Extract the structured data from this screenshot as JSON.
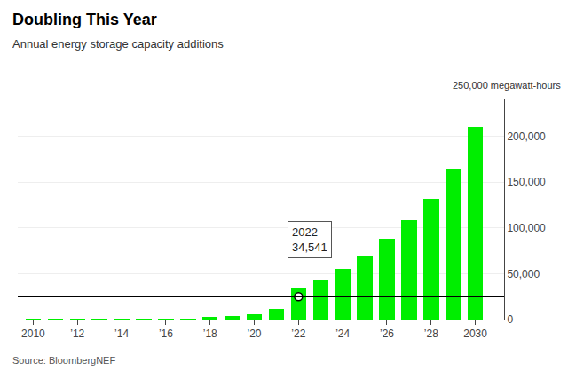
{
  "chart_data": {
    "type": "bar",
    "title": "Doubling This Year",
    "subtitle": "Annual energy storage capacity additions",
    "source": "Source: BloombergNEF",
    "unit_label": "250,000 megawatt-hours",
    "x": [
      2010,
      2011,
      2012,
      2013,
      2014,
      2015,
      2016,
      2017,
      2018,
      2019,
      2020,
      2021,
      2022,
      2023,
      2024,
      2025,
      2026,
      2027,
      2028,
      2029,
      2030
    ],
    "values": [
      150,
      200,
      250,
      300,
      350,
      450,
      600,
      900,
      2500,
      4000,
      5500,
      12000,
      34541,
      44000,
      55000,
      70000,
      88000,
      108000,
      132000,
      165000,
      210000
    ],
    "color": "#00ee00",
    "hline": 25000,
    "annotations": [
      {
        "x": 2022,
        "text": "2022\n34,541"
      }
    ],
    "xlim": [
      2009.3,
      2031.3
    ],
    "xticks": [
      2010,
      {
        "value": 2012,
        "label": "’12"
      },
      {
        "value": 2014,
        "label": "’14"
      },
      {
        "value": 2016,
        "label": "’16"
      },
      {
        "value": 2018,
        "label": "’18"
      },
      {
        "value": 2020,
        "label": "’20"
      },
      {
        "value": 2022,
        "label": "’22"
      },
      {
        "value": 2024,
        "label": "’24"
      },
      {
        "value": 2026,
        "label": "’26"
      },
      {
        "value": 2028,
        "label": "’28"
      },
      2030
    ],
    "ylim": [
      0,
      240000
    ],
    "yticks": [
      0,
      {
        "value": 50000,
        "label": "50,000"
      },
      {
        "value": 100000,
        "label": "100,000"
      },
      {
        "value": 150000,
        "label": "150,000"
      },
      {
        "value": 200000,
        "label": "200,000"
      }
    ],
    "grid": true
  }
}
